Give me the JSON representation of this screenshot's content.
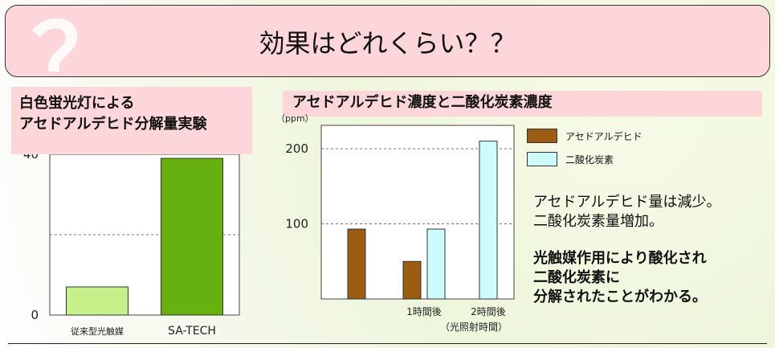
{
  "banner": {
    "title": "効果はどれくらい？？",
    "decoration": "？"
  },
  "left_panel": {
    "title_line1": "白色蛍光灯による",
    "title_line2": "アセドアルデヒド分解量実験"
  },
  "right_panel": {
    "title": "アセドアルデヒド濃度と二酸化炭素濃度",
    "explanation_line1": "アセドアルデヒド量は減少。",
    "explanation_line2": "二酸化炭素量増加。",
    "conclusion_line1": "光触媒作用により酸化され",
    "conclusion_line2": "二酸化炭素に",
    "conclusion_line3": "分解されたことがわかる。"
  },
  "chart_data": [
    {
      "type": "bar",
      "categories": [
        "従来型光触媒",
        "SA-TECH"
      ],
      "values": [
        7,
        39
      ],
      "colors": [
        "#c6f08a",
        "#66b010"
      ],
      "yticks": [
        "0",
        "40"
      ],
      "ylim": [
        0,
        40
      ],
      "grid": "dashed at 20"
    },
    {
      "type": "bar",
      "ylabel": "（ppm）",
      "categories": [
        "",
        "1時間後",
        "2時間後"
      ],
      "xlabel": "（光照射時間）",
      "yticks": [
        "100",
        "200"
      ],
      "ylim": [
        0,
        200
      ],
      "series": [
        {
          "name": "アセドアルデヒド",
          "values": [
            93,
            50,
            null
          ],
          "color": "#9c5d12"
        },
        {
          "name": "二酸化炭素",
          "values": [
            null,
            93,
            210
          ],
          "color": "#ccfcfc"
        }
      ],
      "legend": "right"
    }
  ]
}
